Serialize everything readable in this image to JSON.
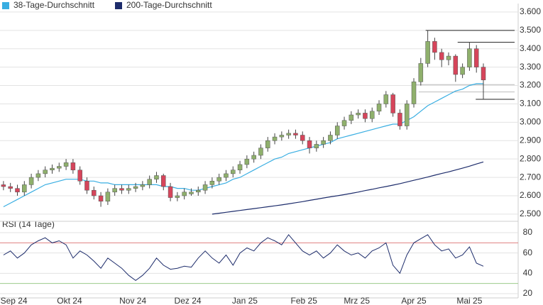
{
  "chart_data": [
    {
      "type": "candlestick",
      "xlim": [
        -0.5,
        74
      ],
      "xticks": [
        {
          "value": 1.5,
          "label": "Sep 24"
        },
        {
          "value": 9.5,
          "label": "Okt 24"
        },
        {
          "value": 18.6,
          "label": "Nov 24"
        },
        {
          "value": 26.5,
          "label": "Dez 24"
        },
        {
          "value": 34.7,
          "label": "Jan 25"
        },
        {
          "value": 43.2,
          "label": "Feb 25"
        },
        {
          "value": 50.8,
          "label": "Mrz 25"
        },
        {
          "value": 59,
          "label": "Apr 25"
        },
        {
          "value": 67,
          "label": "Mai 25"
        }
      ],
      "ylim": [
        2.461,
        3.646
      ],
      "yticks": [
        {
          "value": 2.5,
          "label": "2.500"
        },
        {
          "value": 2.6,
          "label": "2.600"
        },
        {
          "value": 2.7,
          "label": "2.700"
        },
        {
          "value": 2.8,
          "label": "2.800"
        },
        {
          "value": 2.9,
          "label": "2.900"
        },
        {
          "value": 3.0,
          "label": "3.000"
        },
        {
          "value": 3.1,
          "label": "3.100"
        },
        {
          "value": 3.2,
          "label": "3.200"
        },
        {
          "value": 3.3,
          "label": "3.300"
        },
        {
          "value": 3.4,
          "label": "3.400"
        },
        {
          "value": 3.5,
          "label": "3.500"
        },
        {
          "value": 3.6,
          "label": "3.600"
        }
      ],
      "grid": true,
      "up_color": "#8fb06c",
      "down_color": "#d6455b",
      "ohlc": {
        "open": [
          2.66,
          2.65,
          2.64,
          2.62,
          2.66,
          2.7,
          2.72,
          2.74,
          2.75,
          2.76,
          2.78,
          2.74,
          2.68,
          2.63,
          2.6,
          2.57,
          2.62,
          2.64,
          2.63,
          2.64,
          2.65,
          2.66,
          2.69,
          2.71,
          2.65,
          2.59,
          2.6,
          2.61,
          2.62,
          2.63,
          2.66,
          2.68,
          2.7,
          2.72,
          2.74,
          2.77,
          2.8,
          2.82,
          2.86,
          2.9,
          2.92,
          2.93,
          2.94,
          2.93,
          2.9,
          2.86,
          2.88,
          2.9,
          2.93,
          2.98,
          3.01,
          3.04,
          3.05,
          3.02,
          3.06,
          3.1,
          3.15,
          3.05,
          2.98,
          3.1,
          3.22,
          3.32,
          3.44,
          3.38,
          3.34,
          3.36,
          3.26,
          3.3,
          3.4,
          3.3
        ],
        "high": [
          2.68,
          2.67,
          2.66,
          2.68,
          2.72,
          2.74,
          2.76,
          2.77,
          2.78,
          2.8,
          2.8,
          2.76,
          2.7,
          2.65,
          2.62,
          2.64,
          2.66,
          2.66,
          2.66,
          2.67,
          2.68,
          2.71,
          2.73,
          2.72,
          2.67,
          2.62,
          2.64,
          2.64,
          2.65,
          2.68,
          2.7,
          2.72,
          2.74,
          2.76,
          2.79,
          2.82,
          2.84,
          2.88,
          2.92,
          2.94,
          2.95,
          2.96,
          2.96,
          2.95,
          2.92,
          2.9,
          2.92,
          2.95,
          3.0,
          3.03,
          3.06,
          3.07,
          3.07,
          3.08,
          3.12,
          3.17,
          3.16,
          3.07,
          3.12,
          3.24,
          3.35,
          3.5,
          3.46,
          3.4,
          3.38,
          3.37,
          3.32,
          3.435,
          3.42,
          3.32
        ],
        "low": [
          2.63,
          2.62,
          2.6,
          2.6,
          2.64,
          2.68,
          2.7,
          2.72,
          2.73,
          2.74,
          2.72,
          2.66,
          2.61,
          2.58,
          2.54,
          2.55,
          2.6,
          2.61,
          2.61,
          2.62,
          2.63,
          2.64,
          2.67,
          2.63,
          2.57,
          2.57,
          2.58,
          2.6,
          2.6,
          2.61,
          2.64,
          2.66,
          2.68,
          2.7,
          2.72,
          2.75,
          2.78,
          2.8,
          2.84,
          2.88,
          2.9,
          2.91,
          2.91,
          2.88,
          2.83,
          2.84,
          2.86,
          2.88,
          2.91,
          2.96,
          2.99,
          3.02,
          3.0,
          3.0,
          3.04,
          3.08,
          3.03,
          2.96,
          2.96,
          3.08,
          3.2,
          3.3,
          3.34,
          3.3,
          3.31,
          3.22,
          3.24,
          3.28,
          3.27,
          3.125
        ],
        "close": [
          2.65,
          2.64,
          2.62,
          2.66,
          2.7,
          2.72,
          2.74,
          2.75,
          2.76,
          2.78,
          2.74,
          2.68,
          2.63,
          2.6,
          2.57,
          2.62,
          2.64,
          2.63,
          2.64,
          2.65,
          2.66,
          2.69,
          2.71,
          2.65,
          2.59,
          2.6,
          2.62,
          2.62,
          2.63,
          2.66,
          2.68,
          2.7,
          2.72,
          2.74,
          2.77,
          2.8,
          2.82,
          2.86,
          2.9,
          2.92,
          2.93,
          2.94,
          2.93,
          2.9,
          2.86,
          2.88,
          2.9,
          2.93,
          2.98,
          3.01,
          3.04,
          3.05,
          3.02,
          3.06,
          3.1,
          3.15,
          3.05,
          2.98,
          3.1,
          3.22,
          3.32,
          3.44,
          3.38,
          3.34,
          3.36,
          3.26,
          3.3,
          3.4,
          3.3,
          3.23
        ]
      },
      "series": [
        {
          "name": "38-Tage-Durchschnitt",
          "color": "#39aee2",
          "values": [
            2.54,
            2.56,
            2.58,
            2.6,
            2.62,
            2.64,
            2.66,
            2.67,
            2.68,
            2.69,
            2.69,
            2.69,
            2.68,
            2.68,
            2.67,
            2.67,
            2.66,
            2.66,
            2.66,
            2.66,
            2.66,
            2.66,
            2.66,
            2.65,
            2.65,
            2.64,
            2.64,
            2.63,
            2.63,
            2.64,
            2.65,
            2.66,
            2.67,
            2.69,
            2.7,
            2.72,
            2.74,
            2.76,
            2.78,
            2.8,
            2.81,
            2.83,
            2.84,
            2.85,
            2.86,
            2.87,
            2.88,
            2.89,
            2.91,
            2.92,
            2.93,
            2.94,
            2.95,
            2.96,
            2.97,
            2.98,
            2.99,
            2.99,
            3.01,
            3.03,
            3.06,
            3.09,
            3.11,
            3.13,
            3.15,
            3.17,
            3.18,
            3.2,
            3.21,
            3.21
          ]
        },
        {
          "name": "200-Tage-Durchschnitt",
          "color": "#1d2c6b",
          "values": [
            null,
            null,
            null,
            null,
            null,
            null,
            null,
            null,
            null,
            null,
            null,
            null,
            null,
            null,
            null,
            null,
            null,
            null,
            null,
            null,
            null,
            null,
            null,
            null,
            null,
            null,
            null,
            null,
            null,
            null,
            2.5,
            2.505,
            2.51,
            2.515,
            2.52,
            2.525,
            2.53,
            2.535,
            2.54,
            2.545,
            2.55,
            2.556,
            2.562,
            2.568,
            2.575,
            2.581,
            2.588,
            2.594,
            2.6,
            2.606,
            2.613,
            2.62,
            2.628,
            2.635,
            2.643,
            2.65,
            2.658,
            2.666,
            2.675,
            2.684,
            2.693,
            2.702,
            2.712,
            2.721,
            2.73,
            2.74,
            2.75,
            2.761,
            2.773,
            2.784
          ]
        }
      ],
      "levels": [
        {
          "value": 3.5,
          "from": 60.7
        },
        {
          "value": 3.435,
          "from": 65.3
        },
        {
          "value": 3.205,
          "from": 58.7,
          "color": "#bbbbbb"
        },
        {
          "value": 3.165,
          "from": 59.7,
          "color": "#bbbbbb"
        },
        {
          "value": 3.125,
          "from": 67.9
        }
      ]
    },
    {
      "type": "line",
      "title": "RSI (14 Tage)",
      "color": "#1d2c6b",
      "ylim": [
        15.8,
        87
      ],
      "yticks": [
        20,
        40,
        60,
        80
      ],
      "grid": true,
      "bands": [
        {
          "value": 70,
          "color": "#e08080"
        },
        {
          "value": 30,
          "color": "#9ccc8c"
        }
      ],
      "values": [
        58,
        62,
        55,
        60,
        68,
        72,
        75,
        70,
        72,
        68,
        55,
        62,
        58,
        52,
        45,
        55,
        50,
        45,
        38,
        33,
        38,
        45,
        55,
        48,
        44,
        45,
        47,
        46,
        55,
        62,
        55,
        50,
        58,
        48,
        60,
        65,
        62,
        70,
        75,
        72,
        68,
        78,
        70,
        62,
        58,
        62,
        55,
        60,
        68,
        62,
        58,
        60,
        55,
        62,
        65,
        70,
        48,
        40,
        58,
        70,
        74,
        78,
        68,
        62,
        64,
        55,
        58,
        66,
        50,
        47
      ]
    }
  ]
}
